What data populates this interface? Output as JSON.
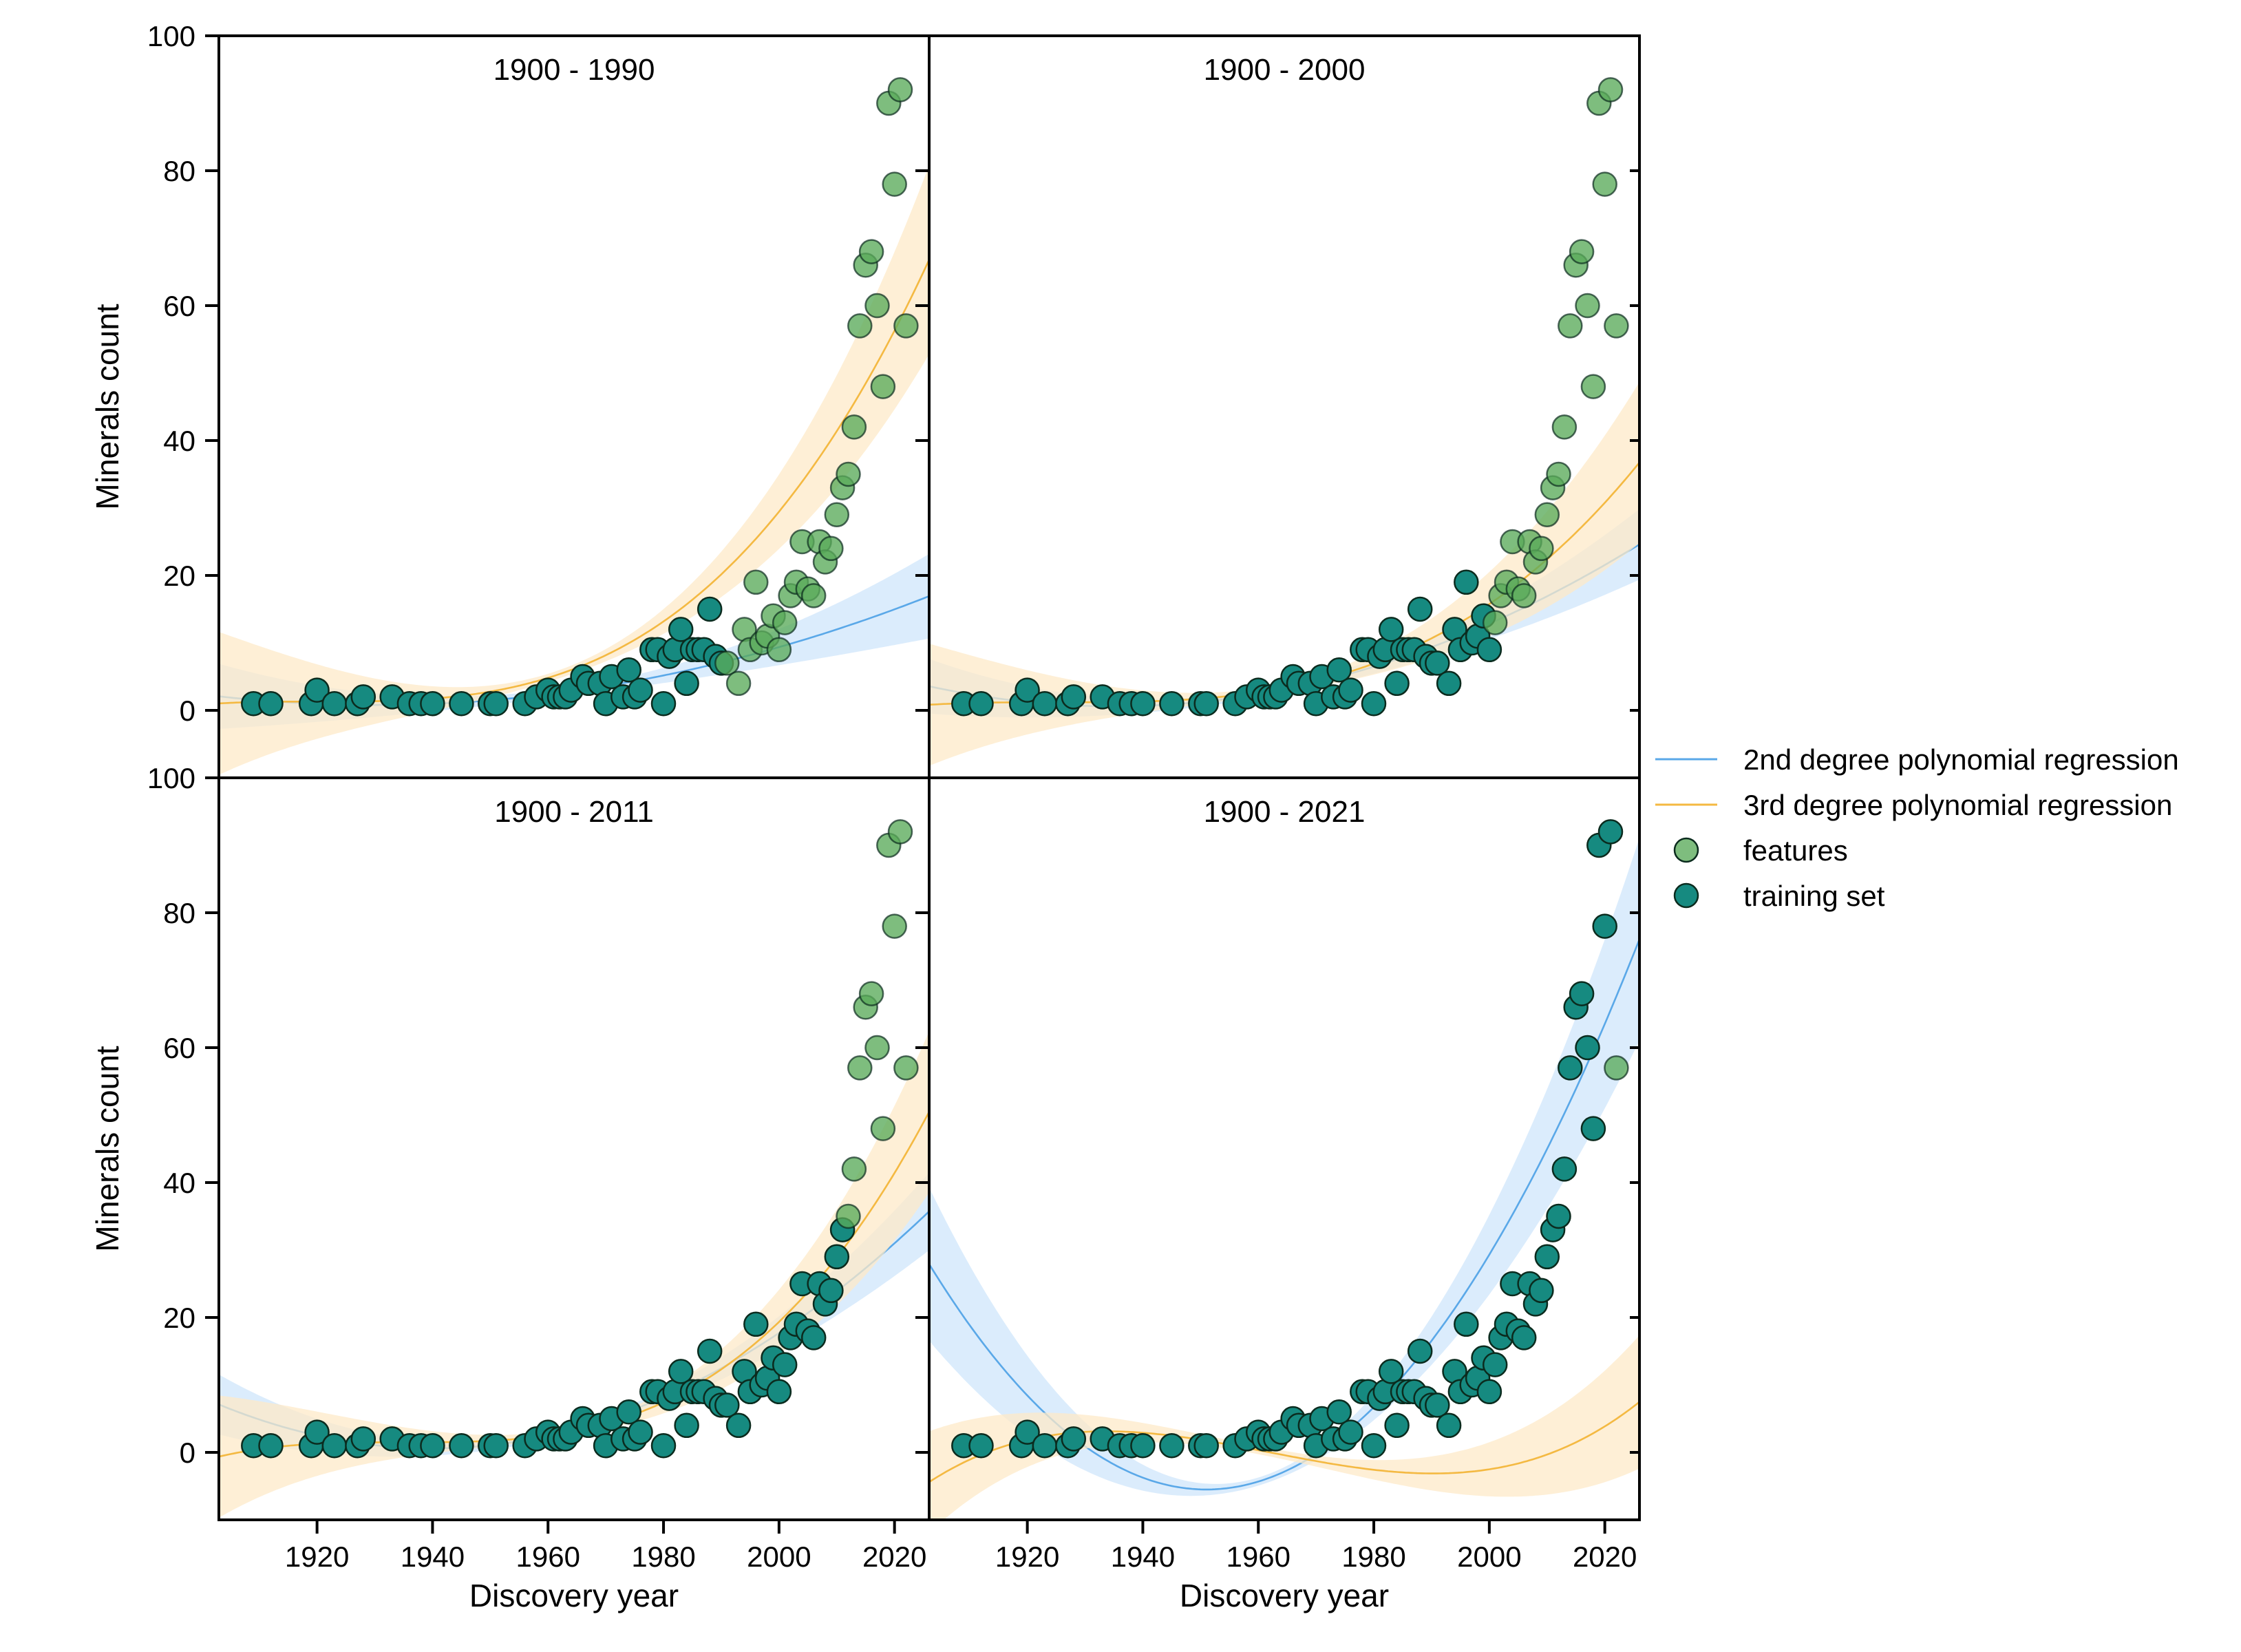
{
  "figure": {
    "x_axis_label": "Discovery year",
    "y_axis_label": "Minerals count",
    "x_range": [
      1903,
      2026
    ],
    "y_range": [
      -10,
      100
    ],
    "x_ticks": [
      1920,
      1940,
      1960,
      1980,
      2000,
      2020
    ],
    "y_ticks": [
      0,
      20,
      40,
      60,
      80,
      100
    ],
    "legend_position": "center-right, outside plots"
  },
  "legend": {
    "items": [
      {
        "label": "2nd degree polynomial regression",
        "kind": "line",
        "color": "#5aa8e8"
      },
      {
        "label": "3rd degree polynomial regression",
        "kind": "line",
        "color": "#f4b942"
      },
      {
        "label": "features",
        "kind": "marker",
        "color": "#5aaa5a"
      },
      {
        "label": "training set",
        "kind": "marker",
        "color": "#168a80"
      }
    ]
  },
  "colors": {
    "quad_line": "#5aa8e8",
    "quad_band": "#cfe6fb",
    "cubic_line": "#f4b942",
    "cubic_band": "#fde9c8",
    "features": "#5aaa5a",
    "training": "#168a80",
    "marker_edge": "#0b2b1e"
  },
  "chart_data": {
    "type": "scatter",
    "all_points": [
      [
        1909,
        1
      ],
      [
        1912,
        1
      ],
      [
        1919,
        1
      ],
      [
        1920,
        3
      ],
      [
        1923,
        1
      ],
      [
        1927,
        1
      ],
      [
        1928,
        2
      ],
      [
        1933,
        2
      ],
      [
        1936,
        1
      ],
      [
        1938,
        1
      ],
      [
        1940,
        1
      ],
      [
        1945,
        1
      ],
      [
        1950,
        1
      ],
      [
        1951,
        1
      ],
      [
        1956,
        1
      ],
      [
        1958,
        2
      ],
      [
        1960,
        3
      ],
      [
        1961,
        2
      ],
      [
        1962,
        2
      ],
      [
        1963,
        2
      ],
      [
        1964,
        3
      ],
      [
        1966,
        5
      ],
      [
        1967,
        4
      ],
      [
        1969,
        4
      ],
      [
        1970,
        1
      ],
      [
        1971,
        5
      ],
      [
        1973,
        2
      ],
      [
        1974,
        6
      ],
      [
        1975,
        2
      ],
      [
        1976,
        3
      ],
      [
        1978,
        9
      ],
      [
        1979,
        9
      ],
      [
        1980,
        1
      ],
      [
        1981,
        8
      ],
      [
        1982,
        9
      ],
      [
        1983,
        12
      ],
      [
        1984,
        4
      ],
      [
        1985,
        9
      ],
      [
        1986,
        9
      ],
      [
        1987,
        9
      ],
      [
        1988,
        15
      ],
      [
        1989,
        8
      ],
      [
        1990,
        7
      ],
      [
        1991,
        7
      ],
      [
        1993,
        4
      ],
      [
        1994,
        12
      ],
      [
        1995,
        9
      ],
      [
        1996,
        19
      ],
      [
        1997,
        10
      ],
      [
        1998,
        11
      ],
      [
        1999,
        14
      ],
      [
        2000,
        9
      ],
      [
        2001,
        13
      ],
      [
        2002,
        17
      ],
      [
        2003,
        19
      ],
      [
        2004,
        25
      ],
      [
        2005,
        18
      ],
      [
        2006,
        17
      ],
      [
        2007,
        25
      ],
      [
        2008,
        22
      ],
      [
        2009,
        24
      ],
      [
        2010,
        29
      ],
      [
        2011,
        33
      ],
      [
        2012,
        35
      ],
      [
        2013,
        42
      ],
      [
        2014,
        57
      ],
      [
        2015,
        66
      ],
      [
        2016,
        68
      ],
      [
        2017,
        60
      ],
      [
        2018,
        48
      ],
      [
        2019,
        90
      ],
      [
        2020,
        78
      ],
      [
        2021,
        92
      ],
      [
        2022,
        57
      ]
    ],
    "panels": [
      {
        "title": "1900 - 1990",
        "train_cutoff": 1990,
        "quad": {
          "vertex_x": 1930,
          "vertex_y": 0.8,
          "k": 0.00175,
          "band_width": 5.5
        },
        "cubic": {
          "coef": [
            1.3,
            0.0,
            0.0,
            5.5e-05
          ],
          "center": 1920,
          "band_width": 13
        }
      },
      {
        "title": "1900 - 2000",
        "train_cutoff": 2000,
        "quad": {
          "vertex_x": 1935,
          "vertex_y": 0.6,
          "k": 0.0029,
          "band_width": 4.5
        },
        "cubic": {
          "coef": [
            1.2,
            0.0,
            0.0,
            3.45e-05
          ],
          "center": 1925,
          "band_width": 11
        }
      },
      {
        "title": "1900 - 2011",
        "train_cutoff": 2011,
        "quad": {
          "vertex_x": 1940,
          "vertex_y": 0.6,
          "k": 0.00475,
          "band_width": 5
        },
        "cubic": {
          "coef": [
            1.5,
            0.0,
            0.0,
            6.5e-05
          ],
          "center": 1935,
          "band_width": 11
        }
      },
      {
        "title": "1900 - 2021",
        "train_cutoff": 2021,
        "quad": {
          "vertex_x": 1951,
          "vertex_y": -5.5,
          "k": 0.0145,
          "band_width": 14
        },
        "cubic": {
          "roots": [
            1913,
            1962,
            2011
          ],
          "scale": 6.9e-05,
          "band_width": 9
        }
      }
    ]
  }
}
